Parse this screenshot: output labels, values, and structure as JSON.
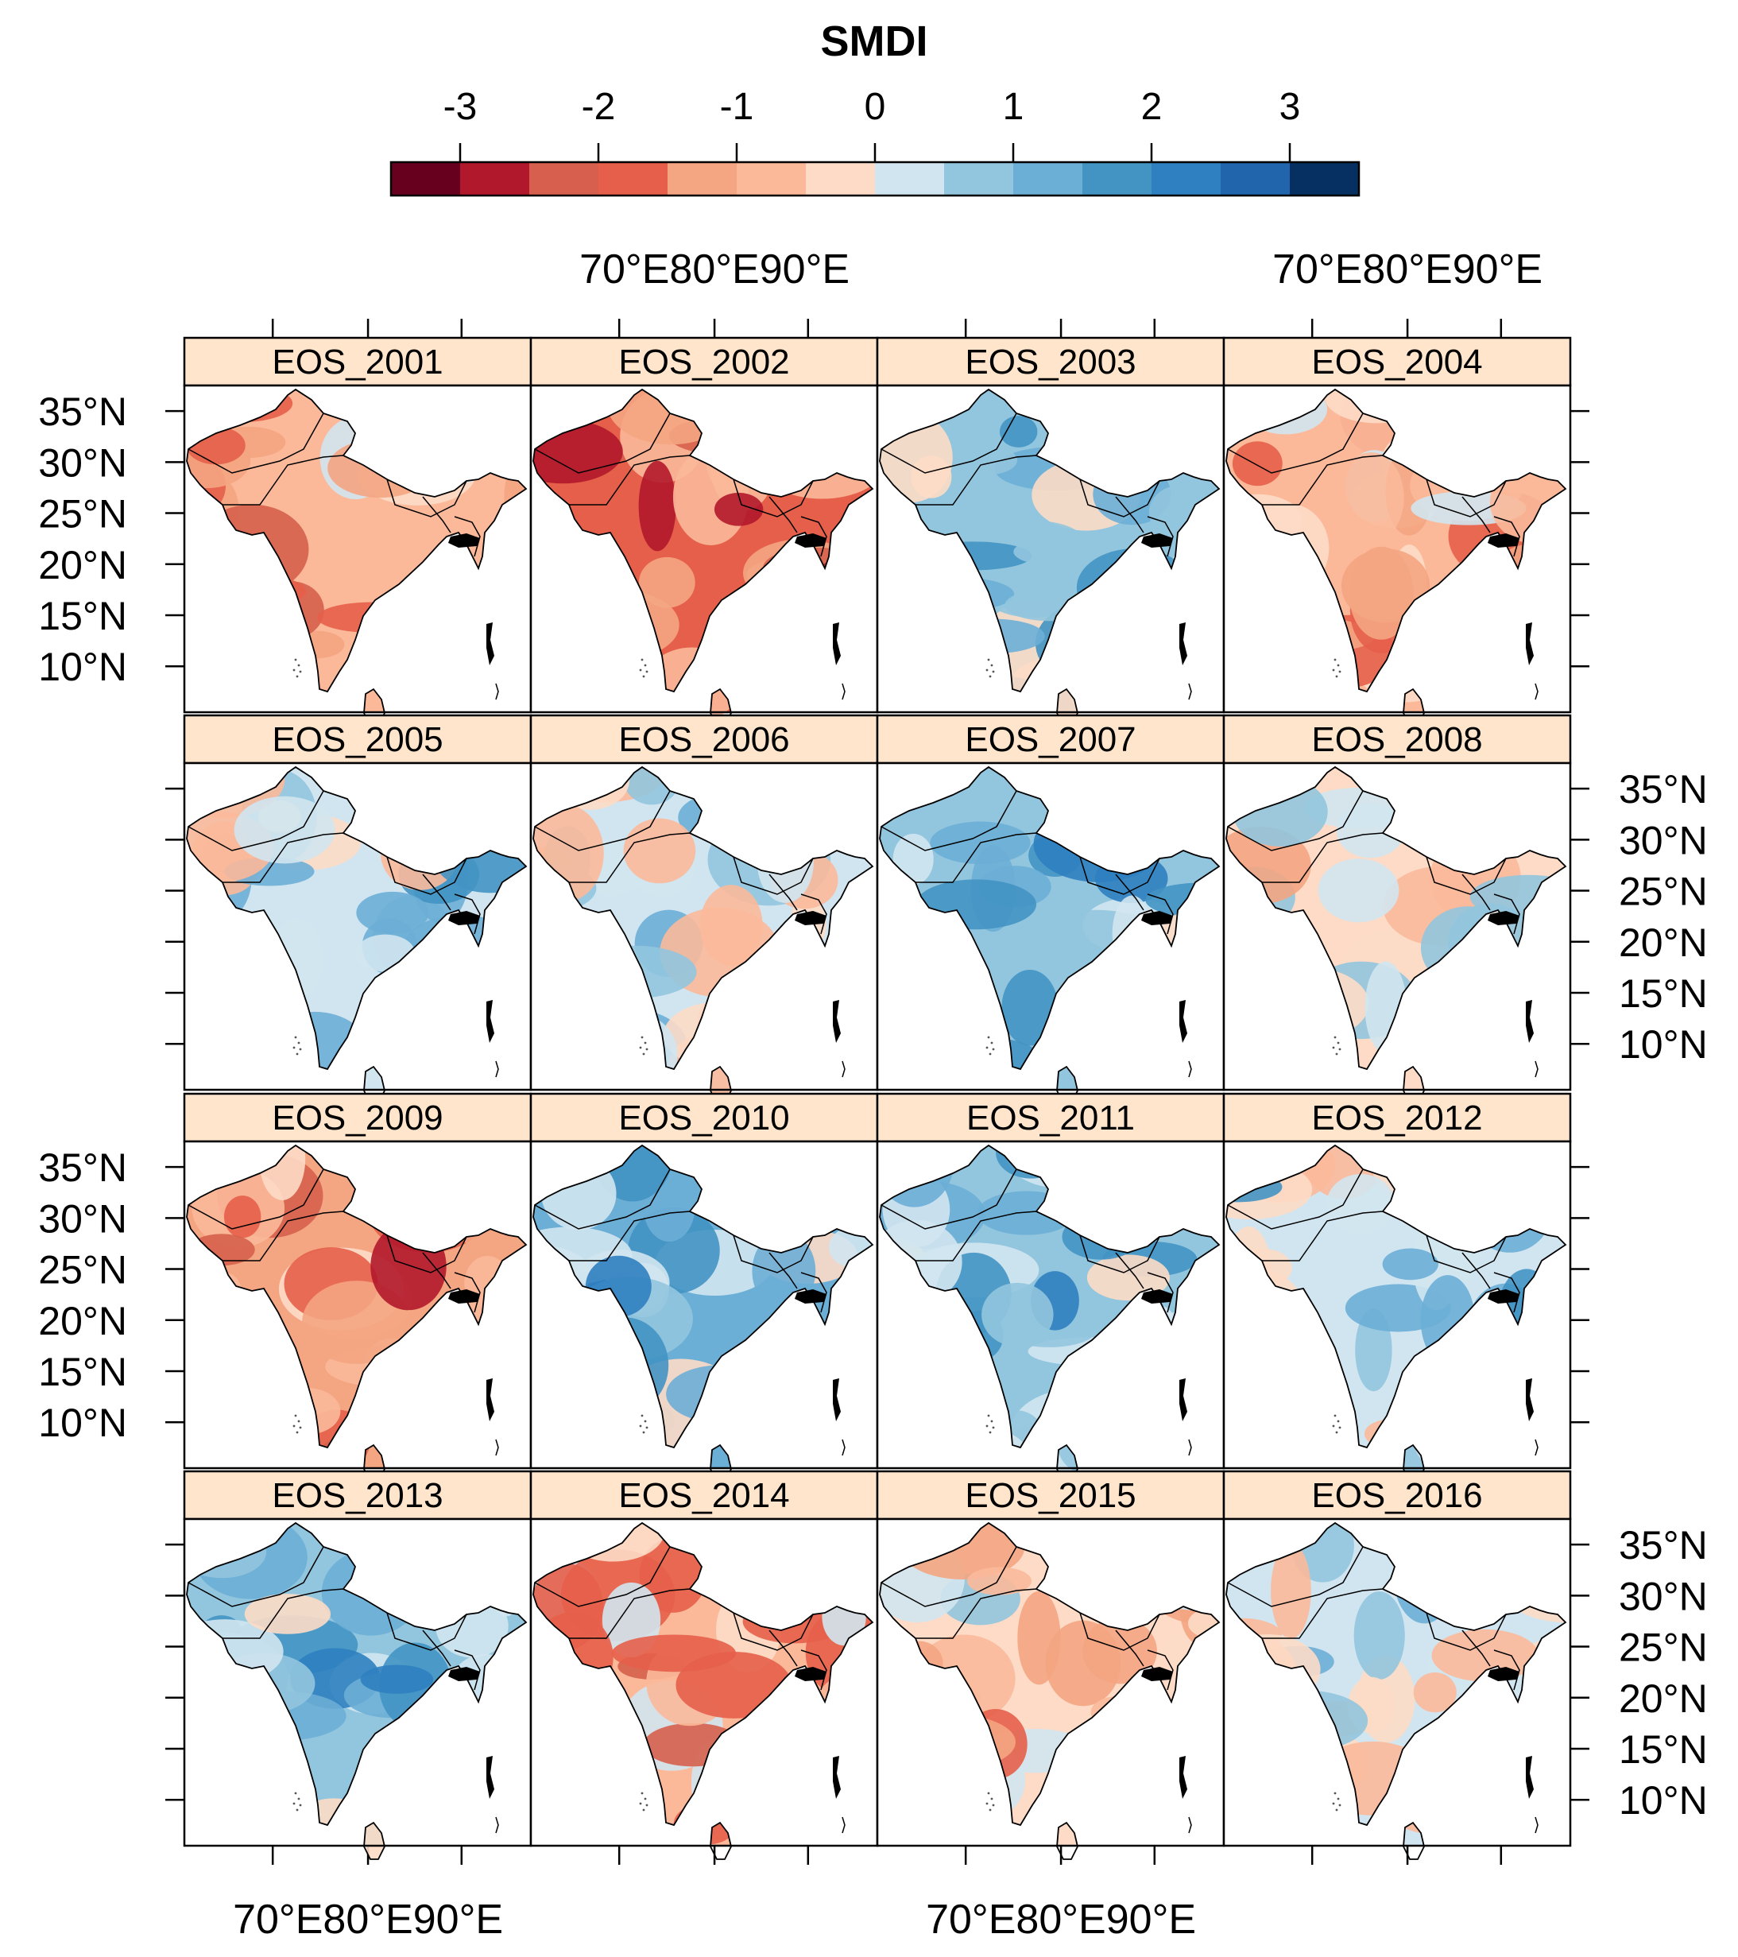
{
  "colorbar": {
    "title": "SMDI",
    "tick_labels": [
      "-3",
      "-2",
      "-1",
      "0",
      "1",
      "2",
      "3"
    ],
    "range": [
      -3.5,
      3.5
    ],
    "step": 0.5,
    "colors": [
      "#67001f",
      "#b2182b",
      "#d6604d",
      "#e55f4a",
      "#f4a582",
      "#fbb99a",
      "#fddbc7",
      "#d1e5f0",
      "#92c5de",
      "#6baed6",
      "#4393c3",
      "#2f80c0",
      "#2166ac",
      "#053061"
    ]
  },
  "axes": {
    "lon_labels": [
      "70°E",
      "80°E",
      "90°E"
    ],
    "lat_labels": [
      "35°N",
      "30°N",
      "25°N",
      "20°N",
      "15°N",
      "10°N"
    ]
  },
  "panels": [
    {
      "title": "EOS_2001",
      "tone": -0.9
    },
    {
      "title": "EOS_2002",
      "tone": -1.6
    },
    {
      "title": "EOS_2003",
      "tone": 0.7
    },
    {
      "title": "EOS_2004",
      "tone": -0.9
    },
    {
      "title": "EOS_2005",
      "tone": 0.3
    },
    {
      "title": "EOS_2006",
      "tone": 0.1
    },
    {
      "title": "EOS_2007",
      "tone": 0.9
    },
    {
      "title": "EOS_2008",
      "tone": -0.2
    },
    {
      "title": "EOS_2009",
      "tone": -1.3
    },
    {
      "title": "EOS_2010",
      "tone": 1.1
    },
    {
      "title": "EOS_2011",
      "tone": 0.9
    },
    {
      "title": "EOS_2012",
      "tone": 0.3
    },
    {
      "title": "EOS_2013",
      "tone": 0.9
    },
    {
      "title": "EOS_2014",
      "tone": -0.9
    },
    {
      "title": "EOS_2015",
      "tone": -0.5
    },
    {
      "title": "EOS_2016",
      "tone": 0.1
    }
  ]
}
